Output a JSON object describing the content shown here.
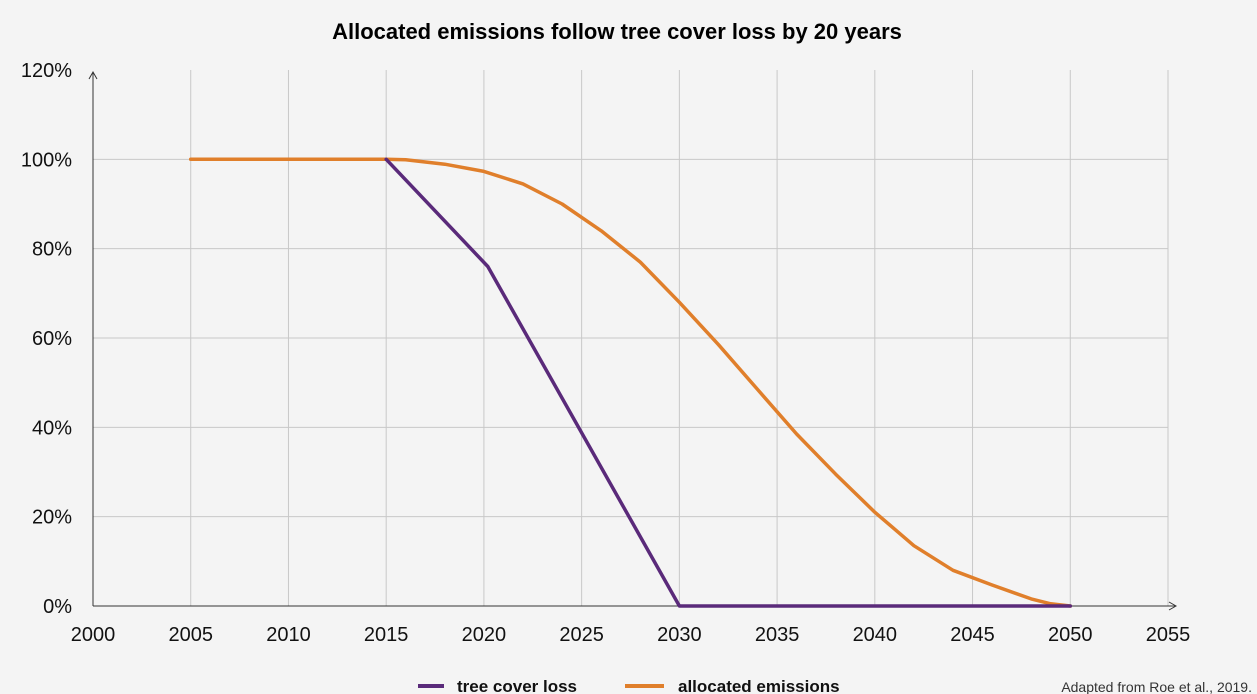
{
  "chart_data": {
    "type": "line",
    "title": "Allocated emissions follow tree cover loss by 20 years",
    "xlabel": "",
    "ylabel": "",
    "xlim": [
      2000,
      2055
    ],
    "ylim": [
      0,
      120
    ],
    "x_ticks": [
      "2000",
      "2005",
      "2010",
      "2015",
      "2020",
      "2025",
      "2030",
      "2035",
      "2040",
      "2045",
      "2050",
      "2055"
    ],
    "y_ticks": [
      "0%",
      "20%",
      "40%",
      "60%",
      "80%",
      "100%",
      "120%"
    ],
    "grid": true,
    "legend_position": "bottom-center",
    "series": [
      {
        "name": "tree cover loss",
        "color": "#5a2a7a",
        "x": [
          2015,
          2020.2,
          2030,
          2050
        ],
        "y": [
          100,
          76,
          0,
          0
        ]
      },
      {
        "name": "allocated emissions",
        "color": "#e07f2b",
        "x": [
          2005,
          2015,
          2016,
          2018,
          2020,
          2022,
          2024,
          2026,
          2028,
          2030,
          2032,
          2034,
          2036,
          2038,
          2040,
          2042,
          2044,
          2046,
          2048,
          2049,
          2050
        ],
        "y": [
          100,
          100,
          99.9,
          98.9,
          97.3,
          94.5,
          90,
          84,
          77,
          68,
          58.5,
          48.5,
          38.5,
          29.5,
          21,
          13.5,
          8,
          4.7,
          1.6,
          0.5,
          0
        ]
      }
    ]
  },
  "source": "Adapted from Roe et al., 2019."
}
